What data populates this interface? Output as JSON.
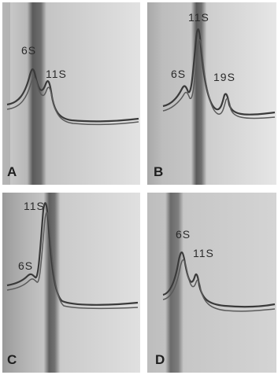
{
  "figure": {
    "panels": [
      {
        "id": "A",
        "letter": "A",
        "peaks": [
          "6S",
          "11S"
        ],
        "bg": "#d6d6d6"
      },
      {
        "id": "B",
        "letter": "B",
        "peaks": [
          "6S",
          "11S",
          "19S"
        ],
        "bg": "#dadada"
      },
      {
        "id": "C",
        "letter": "C",
        "peaks": [
          "6S",
          "11S"
        ],
        "bg": "#cfcfcf"
      },
      {
        "id": "D",
        "letter": "D",
        "peaks": [
          "6S",
          "11S"
        ],
        "bg": "#c9c9c9"
      }
    ]
  }
}
